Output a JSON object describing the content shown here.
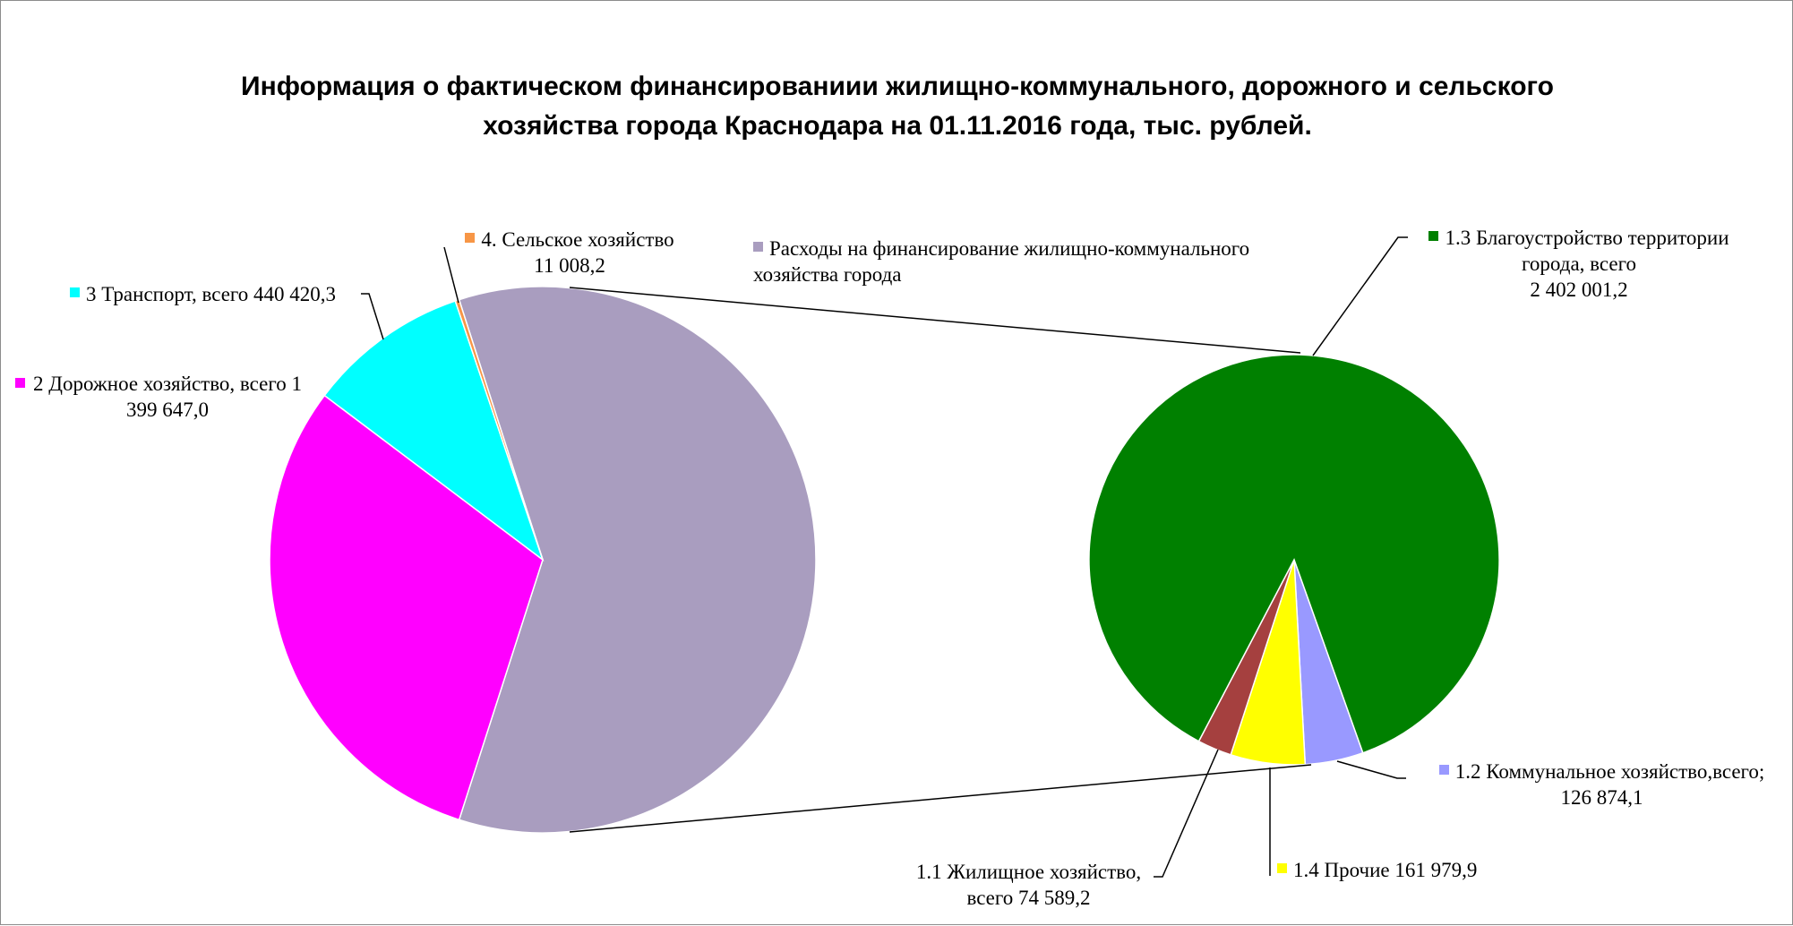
{
  "chart_data": {
    "type": "pie-of-pie",
    "title": "Информация о фактическом финансированиии жилищно-коммунального, дорожного и сельского хозяйства города Краснодара на 01.11.2016 года, тыс. рублей.",
    "pie": {
      "categories": [
        "Расходы на финансирование жилищно-коммунального хозяйства города",
        "2 Дорожное хозяйство, всего",
        "3 Транспорт, всего",
        "4. Сельское хозяйство"
      ],
      "values": [
        2765444.4,
        1399647.0,
        440420.3,
        11008.2
      ],
      "value_labels": [
        null,
        "1 399 647,0",
        "440 420,3",
        "11 008,2"
      ],
      "colors": [
        "#a99dbf",
        "#ff00ff",
        "#00ffff",
        "#f79646"
      ]
    },
    "sub_pie": {
      "categories": [
        "1.2 Коммунальное хозяйство,всего;",
        "1.4 Прочие",
        "1.1 Жилищное хозяйство, всего",
        "1.3 Благоустройство территории города, всего"
      ],
      "values": [
        126874.1,
        161979.9,
        74589.2,
        2402001.2
      ],
      "value_labels": [
        "126 874,1",
        "161 979,9",
        "74 589,2",
        "2 402 001,2"
      ],
      "colors": [
        "#9999ff",
        "#ffff00",
        "#a5403f",
        "#008000"
      ]
    }
  }
}
